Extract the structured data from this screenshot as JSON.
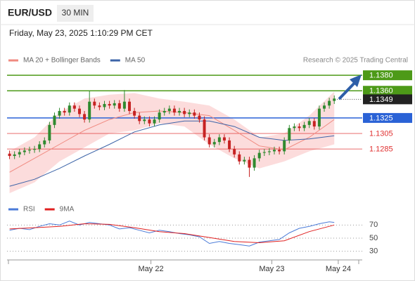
{
  "header": {
    "symbol": "EUR/USD",
    "interval": "30 MIN",
    "timestamp": "Friday, May 23, 2025 1:10:29 PM CET"
  },
  "chart_data": [
    {
      "type": "candlestick",
      "source": "Research © 2025 Trading Central",
      "xlim": [
        -0.5,
        70.6
      ],
      "ylim": [
        1.1219,
        1.1391
      ],
      "up_color": "#2f8a2f",
      "down_color": "#c62222",
      "band_color": "#fbd6d6",
      "candles": {
        "open": [
          1.1279,
          1.1276,
          1.1278,
          1.1281,
          1.1283,
          1.1284,
          1.1285,
          1.1291,
          1.1296,
          1.1316,
          1.1328,
          1.1334,
          1.1332,
          1.1341,
          1.1337,
          1.133,
          1.1323,
          1.1346,
          1.1341,
          1.1339,
          1.1343,
          1.1341,
          1.1344,
          1.1337,
          1.1346,
          1.1334,
          1.1328,
          1.1321,
          1.1323,
          1.1318,
          1.1323,
          1.1332,
          1.1334,
          1.1337,
          1.1332,
          1.1334,
          1.133,
          1.1332,
          1.1328,
          1.1323,
          1.13,
          1.1291,
          1.1294,
          1.13,
          1.1296,
          1.1285,
          1.1278,
          1.1269,
          1.1271,
          1.1261,
          1.1273,
          1.128,
          1.1281,
          1.1282,
          1.1284,
          1.1282,
          1.1296,
          1.1312,
          1.1314,
          1.1312,
          1.1316,
          1.1321,
          1.1314,
          1.1337,
          1.1341,
          1.1347
        ],
        "high": [
          1.1283,
          1.1282,
          1.1285,
          1.1287,
          1.1288,
          1.1289,
          1.1295,
          1.13,
          1.132,
          1.1332,
          1.1338,
          1.1338,
          1.1345,
          1.1345,
          1.1341,
          1.1334,
          1.136,
          1.135,
          1.1345,
          1.1347,
          1.1347,
          1.1348,
          1.1348,
          1.1361,
          1.135,
          1.1338,
          1.1332,
          1.1327,
          1.1327,
          1.1327,
          1.1336,
          1.1338,
          1.1341,
          1.1341,
          1.1338,
          1.1338,
          1.1336,
          1.1336,
          1.1332,
          1.1327,
          1.1304,
          1.1298,
          1.1304,
          1.1304,
          1.13,
          1.1289,
          1.1282,
          1.1275,
          1.1275,
          1.1277,
          1.1284,
          1.1285,
          1.1286,
          1.1288,
          1.1288,
          1.13,
          1.1316,
          1.1318,
          1.1318,
          1.132,
          1.1325,
          1.1325,
          1.1341,
          1.1345,
          1.1351,
          1.1354
        ],
        "low": [
          1.1272,
          1.1272,
          1.1274,
          1.1277,
          1.1279,
          1.128,
          1.1281,
          1.1287,
          1.1292,
          1.1312,
          1.1324,
          1.1328,
          1.1328,
          1.1333,
          1.1326,
          1.1319,
          1.1319,
          1.1337,
          1.1335,
          1.1335,
          1.1337,
          1.1337,
          1.1333,
          1.1333,
          1.133,
          1.1324,
          1.1317,
          1.1317,
          1.1314,
          1.1314,
          1.1319,
          1.1328,
          1.133,
          1.1328,
          1.1328,
          1.1326,
          1.1326,
          1.1324,
          1.1319,
          1.1296,
          1.1287,
          1.1287,
          1.129,
          1.1292,
          1.1281,
          1.1274,
          1.1265,
          1.1265,
          1.1249,
          1.1257,
          1.1269,
          1.1276,
          1.1277,
          1.1278,
          1.1278,
          1.1278,
          1.1292,
          1.1308,
          1.1308,
          1.1308,
          1.1312,
          1.131,
          1.131,
          1.1333,
          1.1337,
          1.1343
        ],
        "close": [
          1.1276,
          1.1278,
          1.1281,
          1.1283,
          1.1284,
          1.1285,
          1.1291,
          1.1296,
          1.1316,
          1.1328,
          1.1334,
          1.1332,
          1.1341,
          1.1337,
          1.133,
          1.1323,
          1.1346,
          1.1341,
          1.1339,
          1.1343,
          1.1341,
          1.1344,
          1.1337,
          1.1346,
          1.1334,
          1.1328,
          1.1321,
          1.1323,
          1.1318,
          1.1323,
          1.1332,
          1.1334,
          1.1337,
          1.1332,
          1.1334,
          1.133,
          1.1332,
          1.1328,
          1.1323,
          1.13,
          1.1291,
          1.1294,
          1.13,
          1.1296,
          1.1285,
          1.1278,
          1.1269,
          1.1271,
          1.1261,
          1.1273,
          1.128,
          1.1281,
          1.1282,
          1.1284,
          1.1282,
          1.1296,
          1.1312,
          1.1314,
          1.1312,
          1.1316,
          1.1321,
          1.1314,
          1.1337,
          1.1341,
          1.1347,
          1.135
        ]
      },
      "series": [
        {
          "name": "MA 20 + Bollinger Bands",
          "color": "#f08a80",
          "x": [
            0,
            5,
            10,
            15,
            20,
            25,
            30,
            35,
            40,
            45,
            50,
            55,
            60,
            65
          ],
          "values": [
            1.1255,
            1.1273,
            1.1291,
            1.1309,
            1.1323,
            1.1332,
            1.1334,
            1.1332,
            1.1328,
            1.1309,
            1.1289,
            1.1284,
            1.13,
            1.1323
          ],
          "upper": [
            1.1282,
            1.13,
            1.1332,
            1.135,
            1.1355,
            1.1357,
            1.135,
            1.1346,
            1.1341,
            1.1323,
            1.13,
            1.1305,
            1.1328,
            1.1359
          ],
          "lower": [
            1.1228,
            1.1242,
            1.1269,
            1.1287,
            1.1305,
            1.1309,
            1.1318,
            1.1314,
            1.1291,
            1.1273,
            1.126,
            1.1269,
            1.1282,
            1.1291
          ]
        },
        {
          "name": "MA 50",
          "color": "#3d64a8",
          "x": [
            0,
            5,
            10,
            15,
            20,
            25,
            30,
            35,
            40,
            45,
            50,
            55,
            60,
            65
          ],
          "values": [
            1.1237,
            1.1246,
            1.126,
            1.1276,
            1.1291,
            1.1307,
            1.1316,
            1.1321,
            1.1321,
            1.1314,
            1.13,
            1.1296,
            1.1298,
            1.1302
          ]
        }
      ],
      "levels": [
        {
          "value": 1.138,
          "label": "1.1380",
          "color": "#4d9a18",
          "label_style": "box",
          "line": "solid"
        },
        {
          "value": 1.136,
          "label": "1.1360",
          "color": "#4d9a18",
          "label_style": "box",
          "line": "solid"
        },
        {
          "value": 1.1349,
          "label": "1.1349",
          "color": "#222222",
          "label_style": "box",
          "line": "dotted"
        },
        {
          "value": 1.1325,
          "label": "1.1325",
          "color": "#2a62d6",
          "label_style": "box",
          "line": "solid"
        },
        {
          "value": 1.1305,
          "label": "1.1305",
          "color": "#e03030",
          "label_style": "text",
          "line": "solid"
        },
        {
          "value": 1.1285,
          "label": "1.1285",
          "color": "#e03030",
          "label_style": "text",
          "line": "solid"
        }
      ]
    },
    {
      "type": "line",
      "xlim": [
        -0.5,
        70.6
      ],
      "ylim": [
        20,
        80
      ],
      "yticks": [
        30,
        50,
        70
      ],
      "grid": true,
      "xticks": [
        {
          "value": 28.3,
          "label": "May 22"
        },
        {
          "value": 52.5,
          "label": "May 23"
        },
        {
          "value": 65.8,
          "label": "May 24"
        }
      ],
      "series": [
        {
          "name": "RSI",
          "color": "#4a7bd8",
          "x": [
            0,
            2,
            4,
            6,
            8,
            10,
            12,
            14,
            16,
            18,
            20,
            22,
            24,
            26,
            28,
            30,
            32,
            34,
            36,
            38,
            40,
            42,
            44,
            46,
            48,
            50,
            52,
            54,
            56,
            58,
            60,
            62,
            64,
            65
          ],
          "values": [
            62,
            65,
            63,
            68,
            72,
            70,
            76,
            70,
            74,
            72,
            70,
            64,
            66,
            62,
            58,
            62,
            60,
            57,
            55,
            52,
            42,
            45,
            42,
            40,
            38,
            44,
            46,
            48,
            58,
            65,
            68,
            72,
            75,
            74
          ]
        },
        {
          "name": "9MA",
          "color": "#e02020",
          "x": [
            0,
            5,
            10,
            15,
            20,
            25,
            30,
            35,
            40,
            45,
            50,
            55,
            60,
            65
          ],
          "values": [
            64,
            66,
            68,
            72,
            71,
            66,
            60,
            57,
            51,
            45,
            43,
            46,
            60,
            70
          ]
        }
      ]
    }
  ]
}
